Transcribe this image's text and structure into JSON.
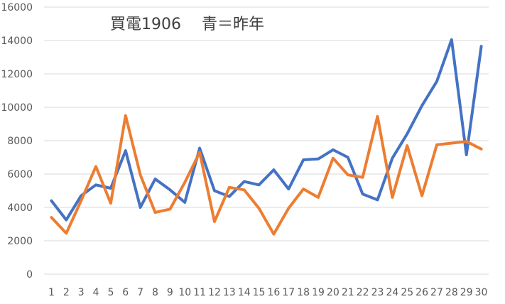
{
  "chart_data": {
    "type": "line",
    "title": "買電1906　 青＝昨年",
    "xlabel": "",
    "ylabel": "",
    "categories": [
      "1",
      "2",
      "3",
      "4",
      "5",
      "6",
      "7",
      "8",
      "9",
      "10",
      "11",
      "12",
      "13",
      "14",
      "15",
      "16",
      "17",
      "18",
      "19",
      "20",
      "21",
      "22",
      "23",
      "24",
      "25",
      "26",
      "27",
      "28",
      "29",
      "30"
    ],
    "ylim": [
      0,
      16000
    ],
    "yticks": [
      0,
      2000,
      4000,
      6000,
      8000,
      10000,
      12000,
      14000,
      16000
    ],
    "ytick_labels": [
      "0",
      "2000",
      "4000",
      "6000",
      "8000",
      "10000",
      "12000",
      "14000",
      "16000"
    ],
    "grid": true,
    "legend": "none",
    "series": [
      {
        "color": "#4472C4",
        "values": [
          4400,
          3250,
          4700,
          5350,
          5150,
          7400,
          4000,
          5700,
          5050,
          4300,
          7550,
          5000,
          4650,
          5550,
          5350,
          6250,
          5100,
          6850,
          6900,
          7450,
          7000,
          4800,
          4450,
          6950,
          8400,
          10100,
          11550,
          14050,
          7150,
          13650
        ]
      },
      {
        "color": "#ED7D31",
        "values": [
          3400,
          2450,
          4400,
          6450,
          4250,
          9500,
          5950,
          3700,
          3900,
          5500,
          7300,
          3150,
          5200,
          5050,
          3950,
          2400,
          3950,
          5100,
          4600,
          6950,
          5950,
          5800,
          9450,
          4600,
          7700,
          4700,
          7750,
          7850,
          7950,
          7500
        ]
      }
    ]
  }
}
